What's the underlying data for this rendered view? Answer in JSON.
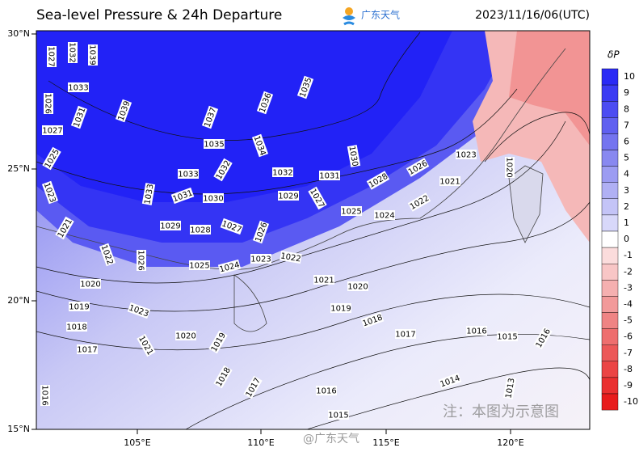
{
  "header": {
    "title": "Sea-level Pressure & 24h Departure",
    "brand": "广东天气",
    "time": "2023/11/16/06(UTC)"
  },
  "map": {
    "lat_labels": [
      "30°N",
      "25°N",
      "20°N",
      "15°N"
    ],
    "lon_labels": [
      "105°E",
      "110°E",
      "115°E",
      "120°E"
    ],
    "isobar_labels": [
      "1027",
      "1032",
      "1039",
      "1033",
      "1035",
      "1026",
      "1031",
      "1039",
      "1037",
      "1036",
      "1027",
      "1035",
      "1034",
      "1030",
      "1025",
      "1033",
      "1032",
      "1032",
      "1031",
      "1028",
      "1026",
      "1023",
      "1020",
      "1021",
      "1023",
      "1031",
      "1030",
      "1029",
      "1027",
      "1025",
      "1024",
      "1022",
      "1033",
      "1021",
      "1029",
      "1028",
      "1027",
      "1026",
      "1022",
      "1026",
      "1025",
      "1024",
      "1023",
      "1022",
      "1020",
      "1021",
      "1020",
      "1019",
      "1023",
      "1019",
      "1018",
      "1018",
      "1020",
      "1019",
      "1017",
      "1016",
      "1015",
      "1016",
      "1017",
      "1021",
      "1018",
      "1017",
      "1014",
      "1016",
      "1013",
      "1016",
      "1015"
    ]
  },
  "colorbar": {
    "title": "δP",
    "ticks": [
      "10",
      "9",
      "8",
      "7",
      "6",
      "5",
      "4",
      "3",
      "2",
      "1",
      "0",
      "-1",
      "-2",
      "-3",
      "-4",
      "-5",
      "-6",
      "-7",
      "-8",
      "-9",
      "-10"
    ],
    "colors": [
      "#2a2af5",
      "#3b3bf3",
      "#4c4cf2",
      "#6060f0",
      "#7474ef",
      "#8888f0",
      "#9c9cf2",
      "#b0b0f4",
      "#c4c4f7",
      "#d8d8fa",
      "#ffffff",
      "#fbdcdc",
      "#f8c6c6",
      "#f5b0b0",
      "#f29a9a",
      "#ef8484",
      "#ee6e6e",
      "#ec5858",
      "#eb4444",
      "#ea3030",
      "#e81c1c"
    ]
  },
  "watermarks": {
    "note": "注：本图为示意图",
    "weibo": "@广东天气"
  }
}
